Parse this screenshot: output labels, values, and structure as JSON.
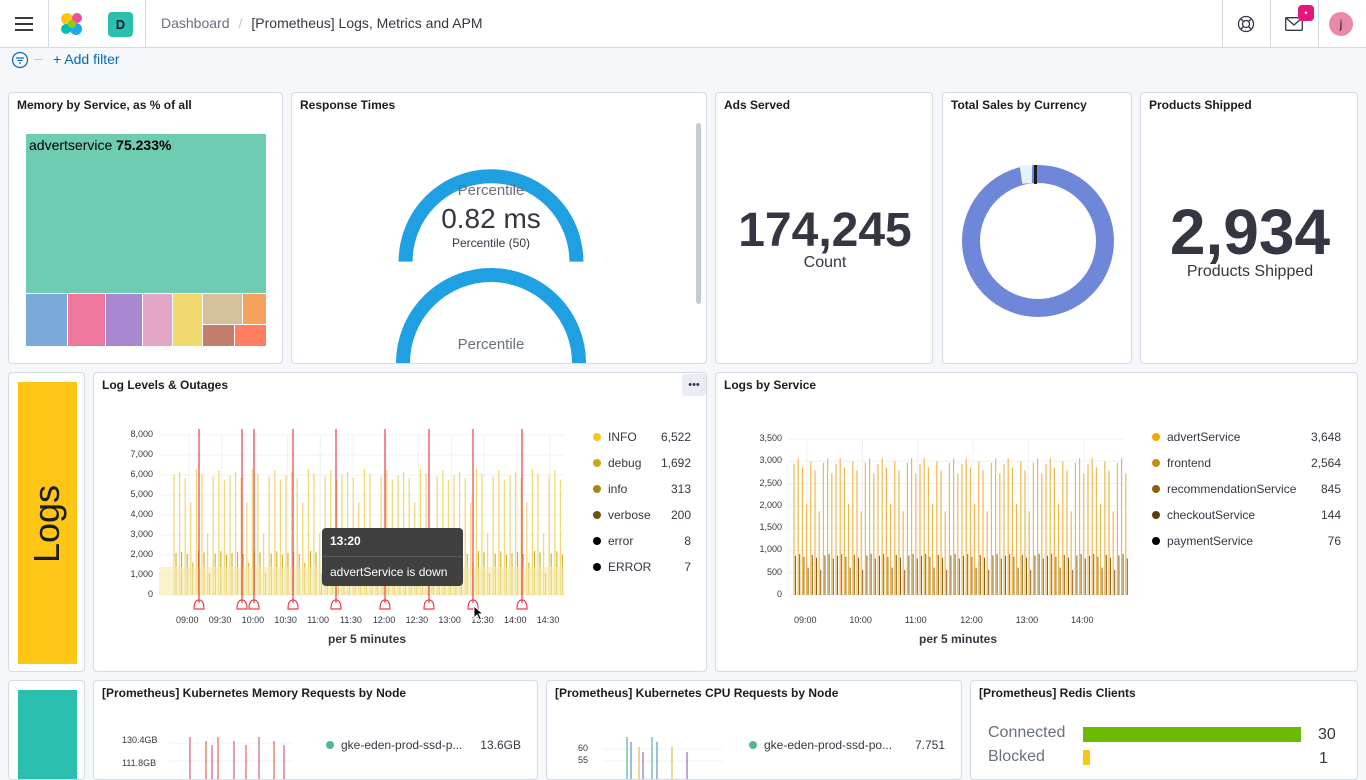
{
  "header": {
    "space_initial": "D",
    "breadcrumbs": [
      "Dashboard",
      "[Prometheus] Logs, Metrics and APM"
    ],
    "notification_badge": "•",
    "user_initial": "j"
  },
  "filterbar": {
    "add_filter": "+ Add filter"
  },
  "colors": {
    "accent": "#006bb8",
    "logs_yellow": "#fec514",
    "teal": "#2bbfb0",
    "gauge_blue": "#1ea0e3"
  },
  "panels": {
    "memory": {
      "title": "Memory by Service, as % of all",
      "top_label_name": "advertservice",
      "top_label_value": "75.233%"
    },
    "response_times": {
      "title": "Response Times",
      "gauge1_title": "Percentile",
      "gauge1_value": "0.82 ms",
      "gauge1_sub": "Percentile (50)",
      "gauge2_title": "Percentile"
    },
    "ads": {
      "title": "Ads Served",
      "value": "174,245",
      "label": "Count"
    },
    "sales": {
      "title": "Total Sales by Currency"
    },
    "shipped": {
      "title": "Products Shipped",
      "value": "2,934",
      "label": "Products Shipped"
    },
    "logs_marker": {
      "label": "Logs"
    },
    "log_levels": {
      "title": "Log Levels & Outages",
      "y_ticks": [
        "8,000",
        "7,000",
        "6,000",
        "5,000",
        "4,000",
        "3,000",
        "2,000",
        "1,000",
        "0"
      ],
      "x_ticks": [
        "09:00",
        "09:30",
        "10:00",
        "10:30",
        "11:00",
        "11:30",
        "12:00",
        "12:30",
        "13:00",
        "13:30",
        "14:00",
        "14:30"
      ],
      "x_title": "per 5 minutes",
      "legend": [
        {
          "name": "INFO",
          "value": "6,522",
          "color": "#fec514"
        },
        {
          "name": "debug",
          "value": "1,692",
          "color": "#c9a71a"
        },
        {
          "name": "info",
          "value": "313",
          "color": "#a68617"
        },
        {
          "name": "verbose",
          "value": "200",
          "color": "#6b5511"
        },
        {
          "name": "error",
          "value": "8",
          "color": "#000000"
        },
        {
          "name": "ERROR",
          "value": "7",
          "color": "#000000"
        }
      ],
      "tooltip_time": "13:20",
      "tooltip_msg": "advertService is down"
    },
    "logs_by_service": {
      "title": "Logs by Service",
      "y_ticks": [
        "3,500",
        "3,000",
        "2,500",
        "2,000",
        "1,500",
        "1,000",
        "500",
        "0"
      ],
      "x_ticks": [
        "09:00",
        "10:00",
        "11:00",
        "12:00",
        "13:00",
        "14:00"
      ],
      "x_title": "per 5 minutes",
      "legend": [
        {
          "name": "advertService",
          "value": "3,648",
          "color": "#f5a700"
        },
        {
          "name": "frontend",
          "value": "2,564",
          "color": "#c98a14"
        },
        {
          "name": "recommendationService",
          "value": "845",
          "color": "#8f5f10"
        },
        {
          "name": "checkoutService",
          "value": "144",
          "color": "#5e3d0a"
        },
        {
          "name": "paymentService",
          "value": "76",
          "color": "#000000"
        }
      ]
    },
    "k8s_memory": {
      "title": "[Prometheus] Kubernetes Memory Requests by Node",
      "y_ticks": [
        "130.4GB",
        "111.8GB"
      ],
      "legend": [
        {
          "name": "gke-eden-prod-ssd-p...",
          "value": "13.6GB",
          "color": "#54b399"
        }
      ]
    },
    "k8s_cpu": {
      "title": "[Prometheus] Kubernetes CPU Requests by Node",
      "y_ticks": [
        "60",
        "55"
      ],
      "legend": [
        {
          "name": "gke-eden-prod-ssd-po...",
          "value": "7.751",
          "color": "#54b399"
        }
      ]
    },
    "redis": {
      "title": "[Prometheus] Redis Clients",
      "rows": [
        {
          "label": "Connected",
          "value": "30",
          "fraction": 1.0,
          "color": "#6dbb00"
        },
        {
          "label": "Blocked",
          "value": "1",
          "fraction": 0.033,
          "color": "#fec514"
        }
      ]
    }
  }
}
